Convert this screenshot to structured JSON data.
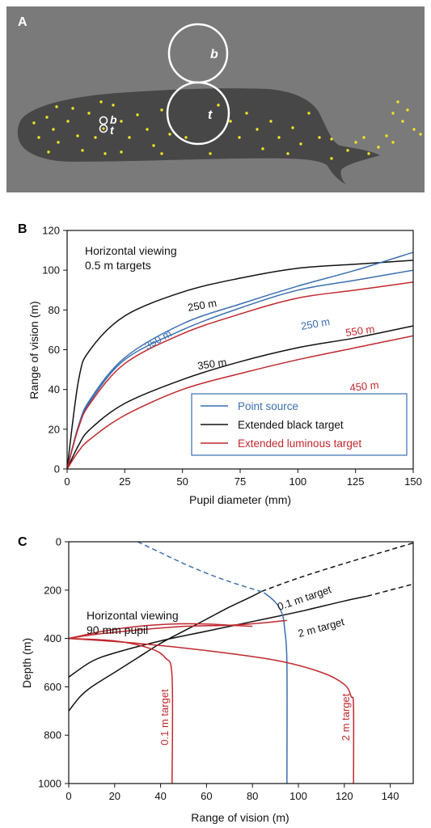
{
  "panelA": {
    "label": "A",
    "big_circle_top_label": "b",
    "big_circle_bottom_label": "t",
    "small_label_b": "b",
    "small_label_t": "t",
    "colors": {
      "background": "#7a7a7a",
      "whale": "#474747",
      "dots": "#f2e324",
      "circles": "#ffffff"
    }
  },
  "chart_data": [
    {
      "panel": "B",
      "type": "line",
      "xlabel": "Pupil diameter (mm)",
      "ylabel": "Range of vision (m)",
      "xlim": [
        0,
        150
      ],
      "ylim": [
        0,
        120
      ],
      "xticks": [
        0,
        25,
        50,
        75,
        100,
        125,
        150
      ],
      "yticks": [
        0,
        20,
        40,
        60,
        80,
        100,
        120
      ],
      "annotation_lines": [
        "Horizontal viewing",
        "0.5 m targets"
      ],
      "legend": {
        "placement": "bottom-right",
        "entries": [
          {
            "name": "Point source",
            "color": "#3a6fb0"
          },
          {
            "name": "Extended black target",
            "color": "#111111"
          },
          {
            "name": "Extended luminous target",
            "color": "#c0282d"
          }
        ]
      },
      "series": [
        {
          "label": "250 m",
          "color": "#111111",
          "x": [
            0,
            5,
            10,
            25,
            50,
            75,
            100,
            125,
            150
          ],
          "y": [
            0,
            45,
            60,
            77,
            89,
            96,
            101,
            103,
            105
          ]
        },
        {
          "label": "350 m",
          "color": "#111111",
          "x": [
            0,
            5,
            10,
            25,
            50,
            75,
            100,
            125,
            150
          ],
          "y": [
            0,
            12,
            20,
            33,
            45,
            54,
            61,
            66,
            72
          ]
        },
        {
          "label": "350 m",
          "color": "#3a6fb0",
          "x": [
            0,
            5,
            10,
            25,
            50,
            75,
            100,
            125,
            150
          ],
          "y": [
            0,
            22,
            35,
            56,
            73,
            83,
            92,
            100,
            109
          ]
        },
        {
          "label": "250 m",
          "color": "#3a6fb0",
          "x": [
            0,
            5,
            10,
            25,
            50,
            75,
            100,
            125,
            150
          ],
          "y": [
            0,
            22,
            34,
            55,
            70,
            81,
            90,
            95,
            100
          ]
        },
        {
          "label": "550 m",
          "color": "#c0282d",
          "x": [
            0,
            5,
            10,
            25,
            50,
            75,
            100,
            125,
            150
          ],
          "y": [
            0,
            21,
            33,
            53,
            68,
            78,
            86,
            90,
            94
          ]
        },
        {
          "label": "450 m",
          "color": "#c0282d",
          "x": [
            0,
            5,
            10,
            25,
            50,
            75,
            100,
            125,
            150
          ],
          "y": [
            0,
            9,
            15,
            27,
            40,
            48,
            55,
            61,
            67
          ]
        }
      ],
      "label_text": {
        "black_250": "250 m",
        "black_350": "350 m",
        "blue_350": "350 m",
        "blue_250": "250 m",
        "red_550": "550 m",
        "red_450": "450 m"
      }
    },
    {
      "panel": "C",
      "type": "line",
      "xlabel": "Range of vision (m)",
      "ylabel": "Depth (m)",
      "xlim": [
        0,
        150
      ],
      "ylim": [
        1000,
        0
      ],
      "xticks": [
        0,
        20,
        40,
        60,
        80,
        100,
        120,
        140
      ],
      "yticks": [
        0,
        200,
        400,
        600,
        800,
        1000
      ],
      "annotation_lines": [
        "Horizontal viewing",
        "90 mm pupil"
      ],
      "series": [
        {
          "label": "0.1 m target",
          "color": "#111111",
          "style": "solid",
          "x": [
            0,
            5,
            10,
            20,
            30,
            40,
            50,
            60,
            70,
            80,
            84
          ],
          "y": [
            700,
            640,
            600,
            540,
            480,
            420,
            370,
            320,
            270,
            225,
            205
          ]
        },
        {
          "label": "0.1 m target",
          "color": "#111111",
          "style": "dashed",
          "x": [
            84,
            100,
            120,
            150
          ],
          "y": [
            205,
            150,
            90,
            5
          ]
        },
        {
          "label": "2 m target",
          "color": "#111111",
          "style": "solid",
          "x": [
            0,
            10,
            20,
            40,
            60,
            80,
            100,
            120,
            130
          ],
          "y": [
            560,
            495,
            460,
            410,
            370,
            330,
            290,
            245,
            225
          ]
        },
        {
          "label": "2 m target",
          "color": "#111111",
          "style": "dashed",
          "x": [
            130,
            140,
            150
          ],
          "y": [
            225,
            200,
            175
          ]
        },
        {
          "label": "Point source",
          "color": "#3a6fb0",
          "style": "dashed",
          "x": [
            30,
            40,
            50,
            60,
            70,
            80,
            85
          ],
          "y": [
            0,
            45,
            90,
            130,
            165,
            195,
            210
          ]
        },
        {
          "label": "Point source",
          "color": "#3a6fb0",
          "style": "solid",
          "x": [
            85,
            90,
            93,
            94,
            95,
            95
          ],
          "y": [
            210,
            250,
            300,
            360,
            500,
            1000
          ]
        },
        {
          "label": "0.1 m target",
          "color": "#c0282d",
          "style": "solid",
          "x": [
            0,
            20,
            35,
            42,
            45,
            45
          ],
          "y": [
            400,
            410,
            440,
            480,
            560,
            1000
          ]
        },
        {
          "label": "2 m target",
          "color": "#c0282d",
          "style": "solid",
          "x": [
            0,
            30,
            60,
            90,
            110,
            120,
            123,
            124,
            124
          ],
          "y": [
            400,
            420,
            450,
            490,
            540,
            590,
            640,
            680,
            1000
          ]
        },
        {
          "label": "0.1 m target",
          "color": "#c0282d",
          "style": "solid",
          "x": [
            0,
            15,
            30,
            45,
            60,
            70,
            80
          ],
          "y": [
            400,
            370,
            350,
            340,
            340,
            345,
            350
          ]
        },
        {
          "label": "2 m target",
          "color": "#c0282d",
          "style": "solid",
          "x": [
            0,
            10,
            30,
            50,
            70,
            85,
            95
          ],
          "y": [
            400,
            385,
            365,
            350,
            345,
            335,
            325
          ]
        }
      ],
      "label_text": {
        "black_small": "0.1 m target",
        "black_large": "2 m target",
        "red_small": "0.1 m target",
        "red_large": "2 m target"
      }
    }
  ]
}
